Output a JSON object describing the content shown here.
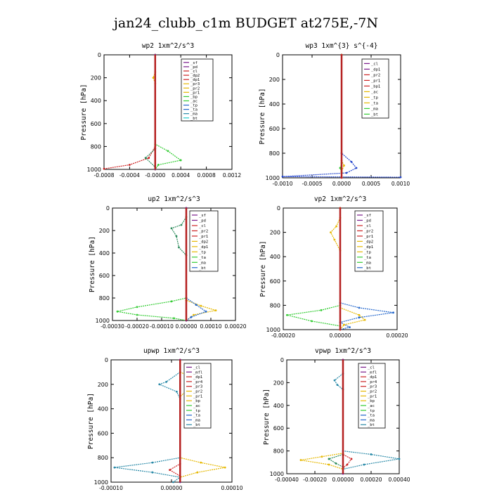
{
  "page_title": "jan24_clubb_c1m  BUDGET at275E,-7N",
  "chart_data": [
    {
      "type": "line",
      "title": "wp2  1xm^2/s^3",
      "ylabel": "Pressure [hPa]",
      "ylim": [
        1000,
        0
      ],
      "yticks": [
        "0",
        "200",
        "400",
        "600",
        "800",
        "1000"
      ],
      "xlim": [
        -0.0008,
        0.0012
      ],
      "xticks": [
        "-0.0008",
        "-0.0004",
        "-0.0000",
        "0.0004",
        "0.0008",
        "0.0012"
      ],
      "legend": [
        "_sf",
        "_pd",
        "_cl",
        "_dp2",
        "_dp1",
        "_pr3",
        "_pr2",
        "_pr1",
        "_bp",
        "_ac",
        "_tp",
        "_ta",
        "_ma",
        "_bt"
      ],
      "series": [
        {
          "name": "_cl",
          "color": "#cc2222",
          "points": [
            [
              0,
              0
            ],
            [
              0,
              800
            ],
            [
              -0.0001,
              900
            ],
            [
              -0.0004,
              960
            ],
            [
              -0.0008,
              995
            ]
          ]
        },
        {
          "name": "_pr1",
          "color": "#33cc33",
          "points": [
            [
              0,
              0
            ],
            [
              0,
              780
            ],
            [
              0.0002,
              840
            ],
            [
              0.0004,
              920
            ],
            [
              5e-05,
              960
            ],
            [
              0,
              1000
            ]
          ]
        },
        {
          "name": "_ac",
          "color": "#2a8a5a",
          "points": [
            [
              0,
              0
            ],
            [
              0,
              820
            ],
            [
              -0.00015,
              900
            ],
            [
              0,
              980
            ]
          ]
        },
        {
          "name": "_pr3",
          "color": "#e6b800",
          "points": [
            [
              0,
              0
            ],
            [
              0,
              150
            ],
            [
              -3e-05,
              200
            ],
            [
              0,
              250
            ],
            [
              0,
              1000
            ]
          ]
        },
        {
          "name": "_pd",
          "color": "#7a1a8a",
          "points": [
            [
              0,
              0
            ],
            [
              0,
              1000
            ]
          ]
        }
      ]
    },
    {
      "type": "line",
      "title": "wp3  1xm^{3} s^{-4}",
      "ylabel": "Pressure [hPa]",
      "ylim": [
        1000,
        0
      ],
      "yticks": [
        "0",
        "200",
        "400",
        "600",
        "800",
        "1000"
      ],
      "xlim": [
        -0.0012,
        0.0012
      ],
      "xticks": [
        "-0.0010",
        "-0.0005",
        "0.0000",
        "0.0005",
        "0.0010"
      ],
      "legend": [
        "_cl",
        "_dp1",
        "_pr2",
        "_pr1",
        "_bp1",
        "_ac",
        "_tp",
        "_ta",
        "_ma",
        "_bt"
      ],
      "series": [
        {
          "name": "_tp",
          "color": "#2244cc",
          "points": [
            [
              0,
              0
            ],
            [
              0,
              800
            ],
            [
              0.0002,
              870
            ],
            [
              0.0003,
              920
            ],
            [
              0.0001,
              960
            ],
            [
              -0.0012,
              990
            ],
            [
              0.0012,
              995
            ]
          ]
        },
        {
          "name": "_pr1",
          "color": "#e6b800",
          "points": [
            [
              0,
              0
            ],
            [
              0,
              860
            ],
            [
              5e-05,
              900
            ],
            [
              0,
              950
            ]
          ]
        },
        {
          "name": "_ac",
          "color": "#33cc33",
          "points": [
            [
              0,
              0
            ],
            [
              0,
              880
            ],
            [
              -3e-05,
              920
            ],
            [
              0,
              960
            ]
          ]
        },
        {
          "name": "_cl",
          "color": "#cc2222",
          "points": [
            [
              0,
              0
            ],
            [
              0,
              1000
            ]
          ]
        }
      ]
    },
    {
      "type": "line",
      "title": "up2  1xm^2/s^3",
      "ylabel": "Pressure [hPa]",
      "ylim": [
        1000,
        0
      ],
      "yticks": [
        "0",
        "200",
        "400",
        "600",
        "800",
        "1000"
      ],
      "xlim": [
        -0.0003,
        0.0002
      ],
      "xticks": [
        "-0.00030",
        "-0.00020",
        "-0.00010",
        "0.00000",
        "0.00010",
        "0.00020"
      ],
      "legend": [
        "_sf",
        "_pd",
        "_cl",
        "_pr2",
        "_pr1",
        "_dp2",
        "_dp1",
        "_tp",
        "_ta",
        "_ma",
        "_bt"
      ],
      "series": [
        {
          "name": "_pr1",
          "color": "#33cc33",
          "points": [
            [
              0,
              0
            ],
            [
              0,
              800
            ],
            [
              -6e-05,
              830
            ],
            [
              -0.0002,
              880
            ],
            [
              -0.00028,
              920
            ],
            [
              -0.0002,
              950
            ],
            [
              -5e-05,
              980
            ],
            [
              0,
              1000
            ]
          ]
        },
        {
          "name": "_pr2",
          "color": "#e6b800",
          "points": [
            [
              0,
              0
            ],
            [
              0,
              820
            ],
            [
              6e-05,
              870
            ],
            [
              0.00012,
              910
            ],
            [
              3e-05,
              950
            ],
            [
              0,
              1000
            ]
          ]
        },
        {
          "name": "_dp2",
          "color": "#2a8a5a",
          "points": [
            [
              0,
              80
            ],
            [
              -2e-05,
              150
            ],
            [
              -6e-05,
              180
            ],
            [
              -4e-05,
              250
            ],
            [
              -3e-05,
              350
            ],
            [
              0,
              420
            ]
          ]
        },
        {
          "name": "_tp",
          "color": "#2266cc",
          "points": [
            [
              0,
              800
            ],
            [
              4e-05,
              860
            ],
            [
              8e-05,
              920
            ],
            [
              2e-05,
              970
            ],
            [
              0,
              1000
            ]
          ]
        },
        {
          "name": "_cl",
          "color": "#cc2222",
          "points": [
            [
              0,
              0
            ],
            [
              0,
              1000
            ]
          ]
        },
        {
          "name": "_pd",
          "color": "#7a1a8a",
          "points": [
            [
              0,
              0
            ],
            [
              0,
              1000
            ]
          ]
        }
      ]
    },
    {
      "type": "line",
      "title": "vp2  1xm^2/s^3",
      "ylabel": "Pressure [hPa]",
      "ylim": [
        1000,
        0
      ],
      "yticks": [
        "0",
        "200",
        "400",
        "600",
        "800",
        "1000"
      ],
      "xlim": [
        -0.0003,
        0.0003
      ],
      "xticks": [
        "-0.00020",
        "0.00000",
        "0.00020"
      ],
      "legend": [
        "_sf",
        "_pd",
        "_cl",
        "_pr2",
        "_pr1",
        "_dp2",
        "_dp1",
        "_tp",
        "_ta",
        "_ma",
        "_bt"
      ],
      "series": [
        {
          "name": "_tp",
          "color": "#2266cc",
          "points": [
            [
              0,
              0
            ],
            [
              0,
              780
            ],
            [
              0.0001,
              820
            ],
            [
              0.00028,
              860
            ],
            [
              0.0001,
              900
            ],
            [
              0,
              940
            ],
            [
              5e-05,
              980
            ],
            [
              0,
              1000
            ]
          ]
        },
        {
          "name": "_pr1",
          "color": "#33cc33",
          "points": [
            [
              0,
              0
            ],
            [
              0,
              800
            ],
            [
              -0.0001,
              840
            ],
            [
              -0.00028,
              880
            ],
            [
              -0.00015,
              930
            ],
            [
              0,
              970
            ]
          ]
        },
        {
          "name": "_pr2",
          "color": "#e6b800",
          "points": [
            [
              0,
              0
            ],
            [
              0,
              820
            ],
            [
              0.0001,
              880
            ],
            [
              0.00013,
              920
            ],
            [
              2e-05,
              960
            ],
            [
              0,
              1000
            ]
          ]
        },
        {
          "name": "_dp2",
          "color": "#e6b800",
          "points": [
            [
              0,
              80
            ],
            [
              -2e-05,
              150
            ],
            [
              -5e-05,
              200
            ],
            [
              -3e-05,
              260
            ],
            [
              0,
              350
            ]
          ]
        },
        {
          "name": "_cl",
          "color": "#cc2222",
          "points": [
            [
              0,
              0
            ],
            [
              0,
              1000
            ]
          ]
        }
      ]
    },
    {
      "type": "line",
      "title": "upwp  1xm^2/s^3",
      "ylabel": "Pressure [hPa]",
      "ylim": [
        1000,
        0
      ],
      "yticks": [
        "0",
        "200",
        "400",
        "600",
        "800",
        "1000"
      ],
      "xlim": [
        -0.0002,
        0.00015
      ],
      "xticks": [
        "-0.00010",
        "0.00000",
        "0.00010"
      ],
      "legend": [
        "_cl",
        "_mfl",
        "_dp1",
        "_pr4",
        "_pr3",
        "_pr2",
        "_pr1",
        "_bp",
        "_ac",
        "_tp",
        "_ta",
        "_ma",
        "_bt"
      ],
      "series": [
        {
          "name": "_tp",
          "color": "#2a8aa8",
          "points": [
            [
              0,
              0
            ],
            [
              0,
              800
            ],
            [
              -8e-05,
              840
            ],
            [
              -0.00019,
              880
            ],
            [
              -8e-05,
              920
            ],
            [
              0,
              960
            ],
            [
              -2e-05,
              1000
            ]
          ]
        },
        {
          "name": "_pr2",
          "color": "#e6b800",
          "points": [
            [
              0,
              0
            ],
            [
              0,
              800
            ],
            [
              6e-05,
              840
            ],
            [
              0.00013,
              880
            ],
            [
              5e-05,
              920
            ],
            [
              0,
              960
            ]
          ]
        },
        {
          "name": "_dp1",
          "color": "#e6b800",
          "points": [
            [
              0,
              100
            ],
            [
              4e-05,
              150
            ],
            [
              7e-05,
              200
            ],
            [
              2e-05,
              250
            ],
            [
              0,
              300
            ]
          ]
        },
        {
          "name": "_ta",
          "color": "#2a8aa8",
          "points": [
            [
              0,
              100
            ],
            [
              -4e-05,
              180
            ],
            [
              -6e-05,
              200
            ],
            [
              -1e-05,
              260
            ],
            [
              0,
              320
            ]
          ]
        },
        {
          "name": "_mfl",
          "color": "#cc2222",
          "points": [
            [
              0,
              0
            ],
            [
              0,
              850
            ],
            [
              -3e-05,
              900
            ],
            [
              0,
              950
            ]
          ]
        },
        {
          "name": "_cl",
          "color": "#7a1a8a",
          "points": [
            [
              0,
              0
            ],
            [
              0,
              1000
            ]
          ]
        }
      ]
    },
    {
      "type": "line",
      "title": "vpwp  1xm^2/s^3",
      "ylabel": "Pressure [hPa]",
      "ylim": [
        1000,
        0
      ],
      "yticks": [
        "0",
        "200",
        "400",
        "600",
        "800",
        "1000"
      ],
      "xlim": [
        -0.0004,
        0.0004
      ],
      "xticks": [
        "-0.00040",
        "-0.00020",
        "0.00000",
        "0.00020",
        "0.00040"
      ],
      "legend": [
        "_cl",
        "_mfl",
        "_dp1",
        "_pr4",
        "_pr3",
        "_pr2",
        "_pr1",
        "_bp",
        "_ac",
        "_tp",
        "_ta",
        "_ma",
        "_bt"
      ],
      "series": [
        {
          "name": "_tp",
          "color": "#2a8aa8",
          "points": [
            [
              0,
              0
            ],
            [
              0,
              800
            ],
            [
              0.0002,
              830
            ],
            [
              0.0004,
              870
            ],
            [
              0.00015,
              920
            ],
            [
              0,
              960
            ]
          ]
        },
        {
          "name": "_pr2",
          "color": "#e6b800",
          "points": [
            [
              0,
              0
            ],
            [
              0,
              820
            ],
            [
              -0.00015,
              850
            ],
            [
              -0.0003,
              880
            ],
            [
              -0.0001,
              920
            ],
            [
              0,
              960
            ]
          ]
        },
        {
          "name": "_mfl",
          "color": "#cc2222",
          "points": [
            [
              0,
              0
            ],
            [
              0,
              830
            ],
            [
              6e-05,
              870
            ],
            [
              3e-05,
              920
            ],
            [
              0,
              950
            ]
          ]
        },
        {
          "name": "_ac",
          "color": "#2a8a5a",
          "points": [
            [
              0,
              830
            ],
            [
              -0.0001,
              870
            ],
            [
              -5e-05,
              910
            ],
            [
              0,
              940
            ]
          ]
        },
        {
          "name": "_ta",
          "color": "#2a8aa8",
          "points": [
            [
              0,
              120
            ],
            [
              -6e-05,
              180
            ],
            [
              -4e-05,
              220
            ],
            [
              0,
              260
            ]
          ]
        },
        {
          "name": "_cl",
          "color": "#7a1a8a",
          "points": [
            [
              0,
              0
            ],
            [
              0,
              1000
            ]
          ]
        }
      ]
    }
  ]
}
